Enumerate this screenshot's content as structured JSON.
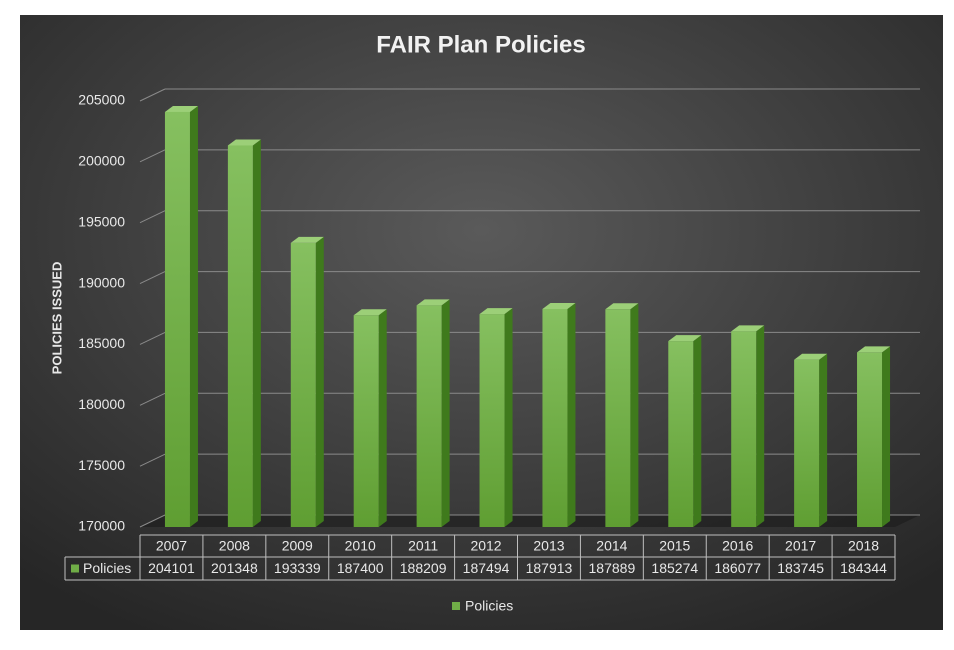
{
  "chart_data": {
    "type": "bar",
    "title": "FAIR Plan Policies",
    "y_label": "POLICIES ISSUED",
    "categories": [
      "2007",
      "2008",
      "2009",
      "2010",
      "2011",
      "2012",
      "2013",
      "2014",
      "2015",
      "2016",
      "2017",
      "2018"
    ],
    "series": [
      {
        "name": "Policies",
        "color": "#70ad47",
        "values": [
          204101,
          201348,
          193339,
          187400,
          188209,
          187494,
          187913,
          187889,
          185274,
          186077,
          183745,
          184344
        ]
      }
    ],
    "ylim": [
      170000,
      205000
    ],
    "yticks": [
      170000,
      175000,
      180000,
      185000,
      190000,
      195000,
      200000,
      205000
    ],
    "grid": true,
    "legend": "bottom"
  }
}
